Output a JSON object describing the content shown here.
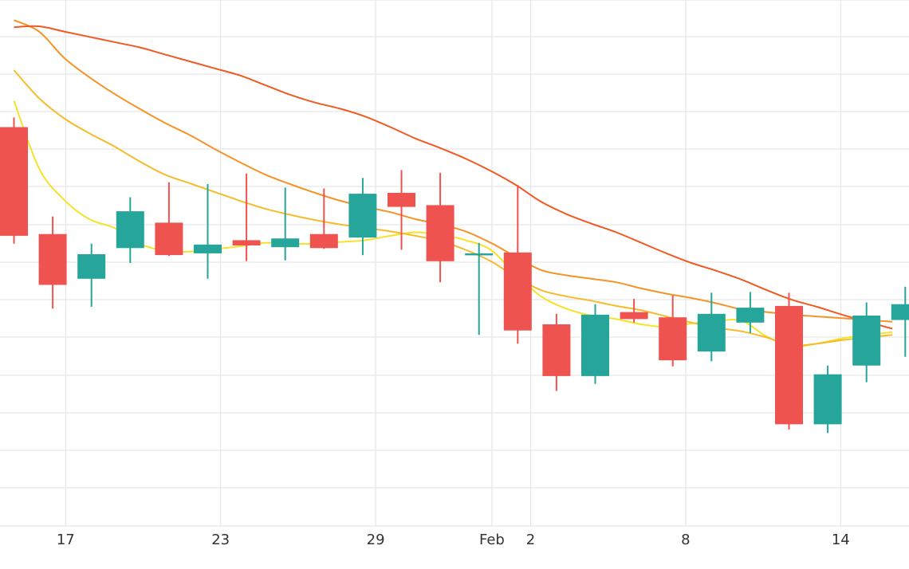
{
  "chart_data": {
    "type": "candlestick",
    "title": "",
    "grid": true,
    "x_tick_labels": [
      {
        "label": "17",
        "slot": 2
      },
      {
        "label": "23",
        "slot": 8
      },
      {
        "label": "29",
        "slot": 14
      },
      {
        "label": "Feb",
        "slot": 18.5
      },
      {
        "label": "2",
        "slot": 20
      },
      {
        "label": "8",
        "slot": 26
      },
      {
        "label": "14",
        "slot": 32
      }
    ],
    "y_axis_note": "price axis labels not visible in screenshot; values below are in relative price units (higher = higher price)",
    "colors": {
      "up": "#26a69a",
      "down": "#ef5350",
      "grid": "#e6e6e6",
      "axis_text": "#333333",
      "ma_colors": [
        "#f5e22a",
        "#f5bb2a",
        "#f59327",
        "#f05a22"
      ]
    },
    "candles": [
      {
        "slot": 0,
        "open": 45.5,
        "high": 46.6,
        "low": 32.2,
        "close": 33.1
      },
      {
        "slot": 1.5,
        "open": 33.3,
        "high": 35.3,
        "low": 24.8,
        "close": 27.5
      },
      {
        "slot": 3,
        "open": 28.2,
        "high": 32.2,
        "low": 25.0,
        "close": 31.0
      },
      {
        "slot": 4.5,
        "open": 31.7,
        "high": 37.5,
        "low": 30.0,
        "close": 35.9
      },
      {
        "slot": 6,
        "open": 34.6,
        "high": 39.2,
        "low": 30.8,
        "close": 30.9
      },
      {
        "slot": 7.5,
        "open": 31.1,
        "high": 39.0,
        "low": 28.2,
        "close": 32.1
      },
      {
        "slot": 9,
        "open": 32.6,
        "high": 40.2,
        "low": 30.2,
        "close": 32.0
      },
      {
        "slot": 10.5,
        "open": 31.8,
        "high": 38.6,
        "low": 30.3,
        "close": 32.8
      },
      {
        "slot": 12,
        "open": 33.3,
        "high": 38.5,
        "low": 31.6,
        "close": 31.7
      },
      {
        "slot": 13.5,
        "open": 32.9,
        "high": 39.7,
        "low": 30.9,
        "close": 37.9
      },
      {
        "slot": 15,
        "open": 38.0,
        "high": 40.6,
        "low": 31.5,
        "close": 36.4
      },
      {
        "slot": 16.5,
        "open": 36.6,
        "high": 40.3,
        "low": 27.8,
        "close": 30.2
      },
      {
        "slot": 18,
        "open": 30.9,
        "high": 32.3,
        "low": 21.8,
        "close": 31.1
      },
      {
        "slot": 19.5,
        "open": 31.2,
        "high": 38.9,
        "low": 20.8,
        "close": 22.3
      },
      {
        "slot": 21,
        "open": 23.0,
        "high": 24.2,
        "low": 15.4,
        "close": 17.1
      },
      {
        "slot": 22.5,
        "open": 17.1,
        "high": 25.3,
        "low": 16.2,
        "close": 24.1
      },
      {
        "slot": 24,
        "open": 24.4,
        "high": 25.9,
        "low": 23.2,
        "close": 23.6
      },
      {
        "slot": 25.5,
        "open": 23.8,
        "high": 26.3,
        "low": 18.2,
        "close": 18.9
      },
      {
        "slot": 27,
        "open": 19.9,
        "high": 26.6,
        "low": 18.8,
        "close": 24.2
      },
      {
        "slot": 28.5,
        "open": 23.2,
        "high": 26.7,
        "low": 22.0,
        "close": 24.9
      },
      {
        "slot": 30,
        "open": 25.1,
        "high": 26.6,
        "low": 11.0,
        "close": 11.6
      },
      {
        "slot": 31.5,
        "open": 11.6,
        "high": 18.3,
        "low": 10.6,
        "close": 17.3
      },
      {
        "slot": 33,
        "open": 18.3,
        "high": 25.5,
        "low": 16.4,
        "close": 24.0
      },
      {
        "slot": 34.5,
        "open": 23.5,
        "high": 27.3,
        "low": 19.3,
        "close": 25.3
      }
    ],
    "moving_averages": [
      {
        "color_index": 0,
        "points": [
          [
            0,
            48.5
          ],
          [
            1,
            40.8
          ],
          [
            2,
            37.2
          ],
          [
            3,
            35.0
          ],
          [
            4,
            34.0
          ],
          [
            5,
            32.2
          ],
          [
            6,
            31.4
          ],
          [
            7,
            31.3
          ],
          [
            8,
            31.6
          ],
          [
            9,
            31.9
          ],
          [
            10,
            32.3
          ],
          [
            11,
            32.2
          ],
          [
            12,
            32.2
          ],
          [
            13,
            32.4
          ],
          [
            14,
            32.6
          ],
          [
            15,
            33.1
          ],
          [
            16,
            33.5
          ],
          [
            17,
            33.2
          ],
          [
            18,
            32.6
          ],
          [
            19,
            31.5
          ],
          [
            20,
            28.7
          ],
          [
            21,
            26.2
          ],
          [
            22,
            24.8
          ],
          [
            23,
            24.0
          ],
          [
            24,
            23.6
          ],
          [
            25,
            23.0
          ],
          [
            26,
            22.7
          ],
          [
            27,
            23.1
          ],
          [
            28,
            23.4
          ],
          [
            29,
            23.4
          ],
          [
            30,
            21.6
          ],
          [
            31,
            20.5
          ],
          [
            32,
            20.8
          ],
          [
            33,
            21.4
          ],
          [
            34,
            21.8
          ],
          [
            35,
            22.1
          ]
        ]
      },
      {
        "color_index": 1,
        "points": [
          [
            0,
            52.0
          ],
          [
            1,
            48.8
          ],
          [
            2,
            46.5
          ],
          [
            3,
            44.8
          ],
          [
            4,
            43.3
          ],
          [
            5,
            41.6
          ],
          [
            6,
            40.1
          ],
          [
            7,
            39.1
          ],
          [
            8,
            38.1
          ],
          [
            9,
            37.1
          ],
          [
            10,
            36.2
          ],
          [
            11,
            35.5
          ],
          [
            12,
            34.9
          ],
          [
            13,
            34.4
          ],
          [
            14,
            34.0
          ],
          [
            15,
            33.6
          ],
          [
            16,
            33.1
          ],
          [
            17,
            32.5
          ],
          [
            18,
            31.5
          ],
          [
            19,
            30.2
          ],
          [
            20,
            28.4
          ],
          [
            21,
            26.9
          ],
          [
            22,
            26.2
          ],
          [
            23,
            25.7
          ],
          [
            24,
            25.1
          ],
          [
            25,
            24.6
          ],
          [
            26,
            23.9
          ],
          [
            27,
            23.2
          ],
          [
            28,
            22.6
          ],
          [
            29,
            22.2
          ],
          [
            30,
            21.5
          ],
          [
            31,
            20.6
          ],
          [
            32,
            20.8
          ],
          [
            33,
            21.2
          ],
          [
            34,
            21.5
          ],
          [
            35,
            21.8
          ]
        ]
      },
      {
        "color_index": 2,
        "points": [
          [
            0,
            57.7
          ],
          [
            1,
            56.4
          ],
          [
            2,
            53.4
          ],
          [
            3,
            51.2
          ],
          [
            4,
            49.3
          ],
          [
            5,
            47.6
          ],
          [
            6,
            46.0
          ],
          [
            7,
            44.6
          ],
          [
            8,
            43.0
          ],
          [
            9,
            41.5
          ],
          [
            10,
            40.1
          ],
          [
            11,
            39.0
          ],
          [
            12,
            38.0
          ],
          [
            13,
            37.1
          ],
          [
            14,
            36.4
          ],
          [
            15,
            35.8
          ],
          [
            16,
            35.0
          ],
          [
            17,
            34.4
          ],
          [
            18,
            33.6
          ],
          [
            19,
            32.3
          ],
          [
            20,
            30.7
          ],
          [
            21,
            29.2
          ],
          [
            22,
            28.6
          ],
          [
            23,
            28.2
          ],
          [
            24,
            27.8
          ],
          [
            25,
            27.1
          ],
          [
            26,
            26.5
          ],
          [
            27,
            26.0
          ],
          [
            28,
            25.4
          ],
          [
            29,
            24.7
          ],
          [
            30,
            24.4
          ],
          [
            31,
            24.1
          ],
          [
            32,
            23.9
          ],
          [
            33,
            23.7
          ],
          [
            34,
            23.5
          ],
          [
            35,
            23.3
          ]
        ]
      },
      {
        "color_index": 3,
        "points": [
          [
            0,
            56.9
          ],
          [
            1,
            57.0
          ],
          [
            2,
            56.4
          ],
          [
            3,
            55.8
          ],
          [
            4,
            55.2
          ],
          [
            5,
            54.6
          ],
          [
            6,
            53.8
          ],
          [
            7,
            53.0
          ],
          [
            8,
            52.2
          ],
          [
            9,
            51.4
          ],
          [
            10,
            50.3
          ],
          [
            11,
            49.2
          ],
          [
            12,
            48.3
          ],
          [
            13,
            47.6
          ],
          [
            14,
            46.7
          ],
          [
            15,
            45.5
          ],
          [
            16,
            44.2
          ],
          [
            17,
            43.1
          ],
          [
            18,
            41.9
          ],
          [
            19,
            40.5
          ],
          [
            20,
            38.9
          ],
          [
            21,
            37.0
          ],
          [
            22,
            35.6
          ],
          [
            23,
            34.5
          ],
          [
            24,
            33.5
          ],
          [
            25,
            32.3
          ],
          [
            26,
            31.1
          ],
          [
            27,
            30.0
          ],
          [
            28,
            29.1
          ],
          [
            29,
            28.1
          ],
          [
            30,
            26.9
          ],
          [
            31,
            25.8
          ],
          [
            32,
            25.0
          ],
          [
            33,
            24.1
          ],
          [
            34,
            23.3
          ],
          [
            35,
            22.5
          ]
        ]
      }
    ]
  }
}
